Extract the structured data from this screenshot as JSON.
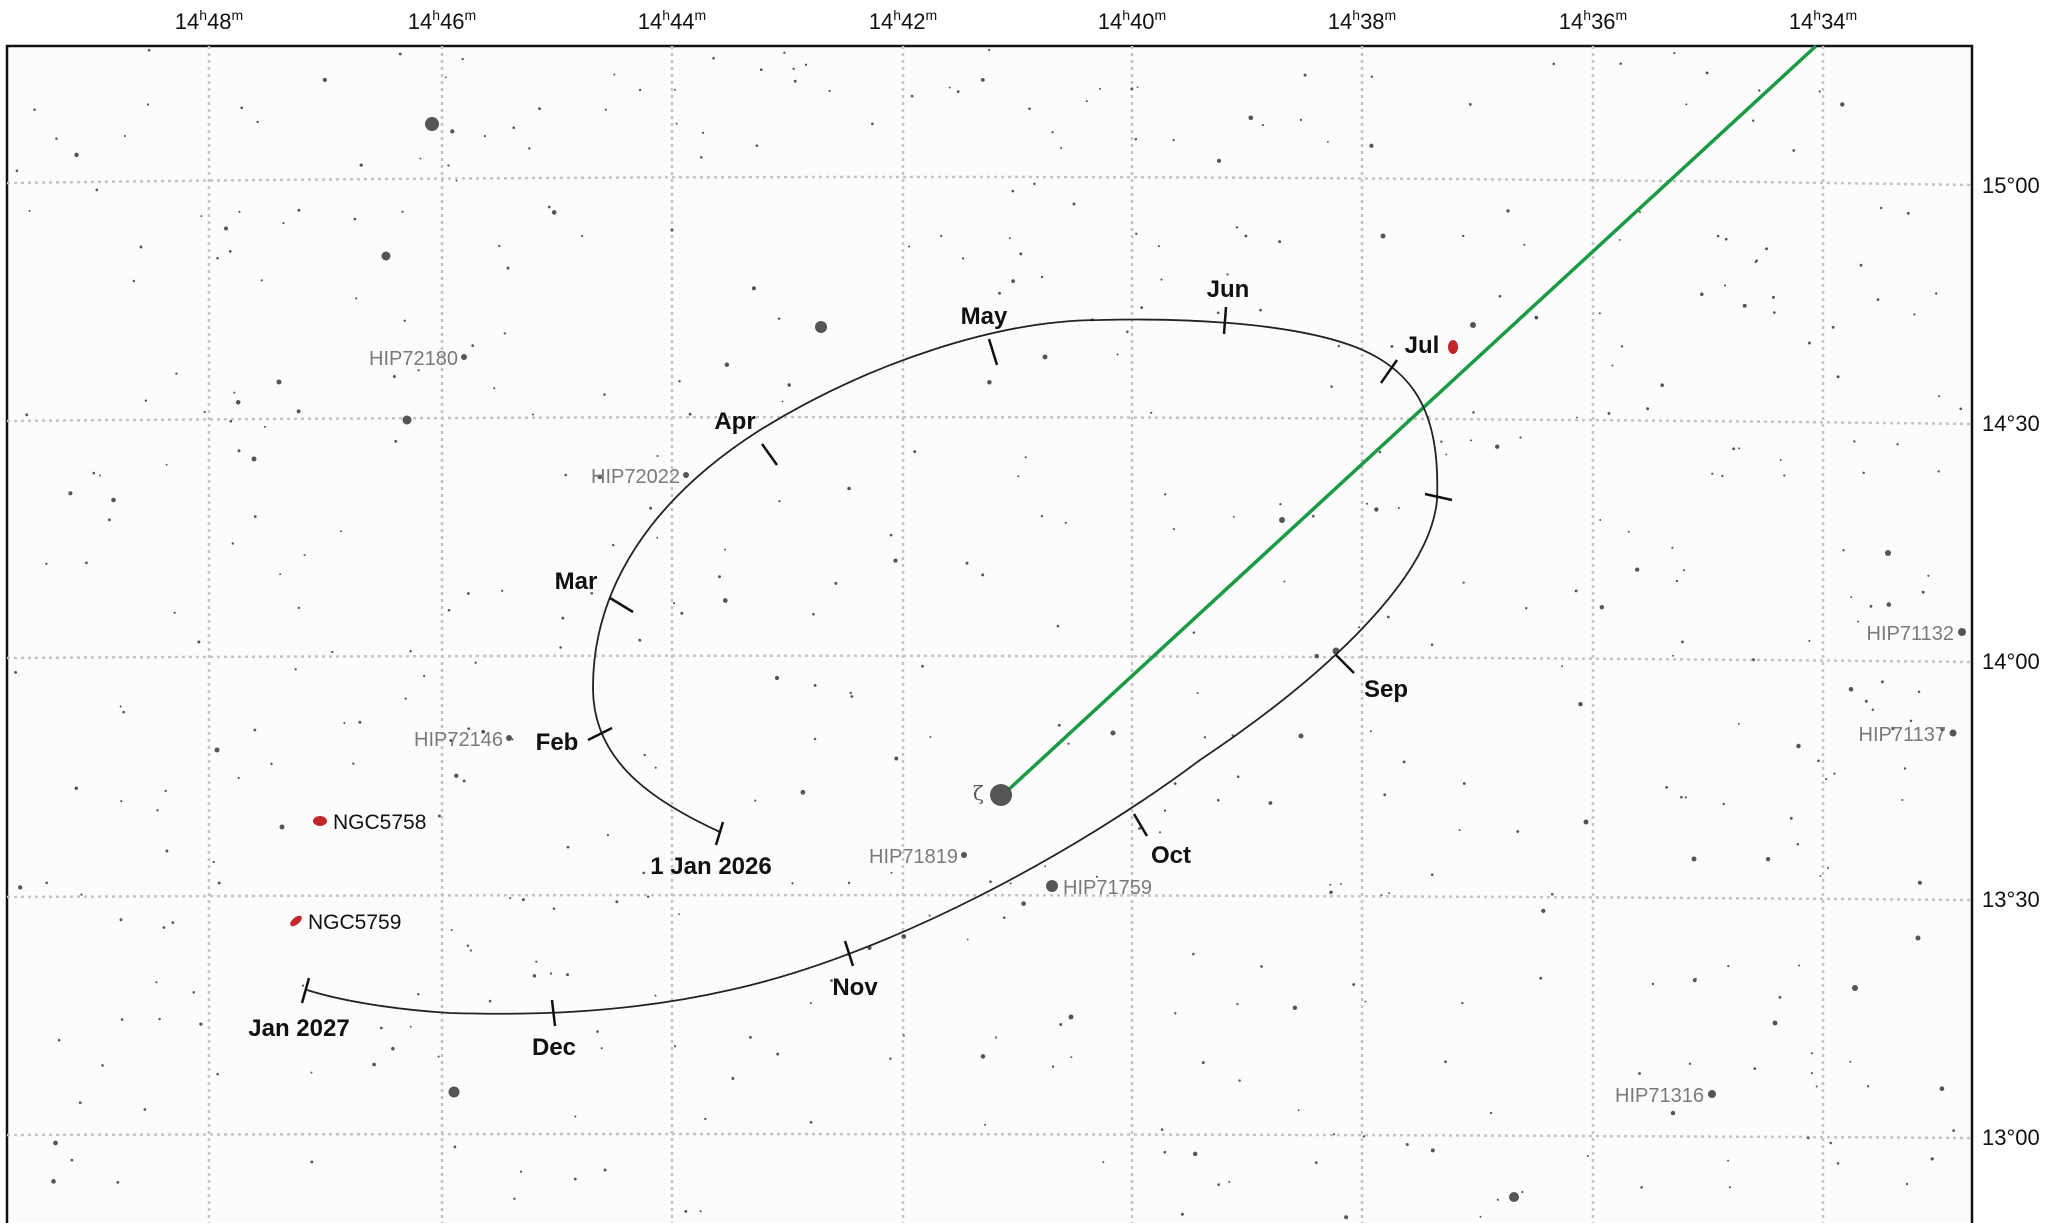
{
  "ra_labels": [
    {
      "h": "14",
      "m": "48"
    },
    {
      "h": "14",
      "m": "46"
    },
    {
      "h": "14",
      "m": "44"
    },
    {
      "h": "14",
      "m": "42"
    },
    {
      "h": "14",
      "m": "40"
    },
    {
      "h": "14",
      "m": "38"
    },
    {
      "h": "14",
      "m": "36"
    },
    {
      "h": "14",
      "m": "34"
    }
  ],
  "dec_labels": [
    "15°00",
    "14°30",
    "14°00",
    "13°30",
    "13°00"
  ],
  "colors": {
    "grid": "#c4c4c4",
    "path": "#222222",
    "green_line": "#1a9a45",
    "galaxy": "#c0262a",
    "star_label": "#7a7a7a",
    "star": "#555555"
  },
  "star_labels": [
    "HIP72180",
    "HIP72022",
    "HIP72146",
    "HIP71819",
    "HIP71759",
    "HIP71132",
    "HIP71137",
    "HIP71316"
  ],
  "galaxy_labels": [
    "NGC5758",
    "NGC5759"
  ],
  "zeta_label": "ζ",
  "month_labels": [
    "1 Jan 2026",
    "Feb",
    "Mar",
    "Apr",
    "May",
    "Jun",
    "Jul",
    "Sep",
    "Oct",
    "Nov",
    "Dec",
    "Jan 2027"
  ]
}
